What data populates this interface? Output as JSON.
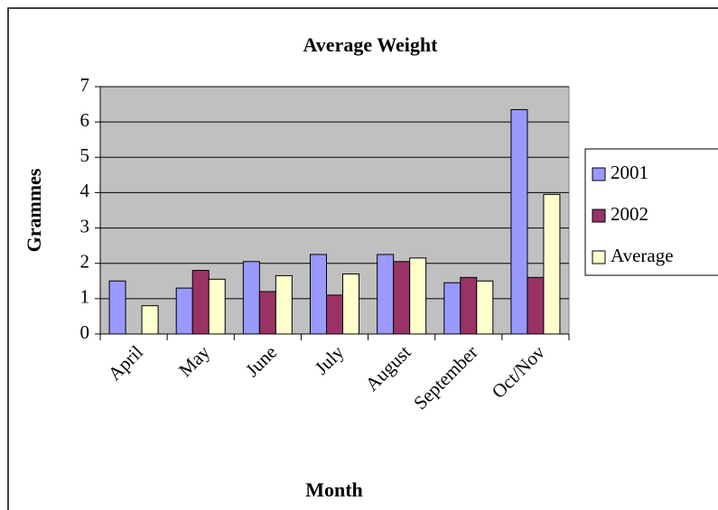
{
  "chart_data": {
    "type": "bar",
    "title": "Average Weight",
    "x_label": "Month",
    "y_label": "Grammes",
    "categories": [
      "April",
      "May",
      "June",
      "July",
      "August",
      "September",
      "Oct/Nov"
    ],
    "series": [
      {
        "name": "2001",
        "color": "#9999ff",
        "values": [
          1.5,
          1.3,
          2.05,
          2.25,
          2.25,
          1.45,
          6.35
        ]
      },
      {
        "name": "2002",
        "color": "#993366",
        "values": [
          null,
          1.8,
          1.2,
          1.1,
          2.05,
          1.6,
          1.6
        ]
      },
      {
        "name": "Average",
        "color": "#ffffcc",
        "values": [
          0.8,
          1.55,
          1.65,
          1.7,
          2.15,
          1.5,
          3.95
        ]
      }
    ],
    "ylim": [
      0,
      7
    ],
    "yticks": [
      0,
      1,
      2,
      3,
      4,
      5,
      6,
      7
    ],
    "grid": true,
    "legend": "right"
  }
}
